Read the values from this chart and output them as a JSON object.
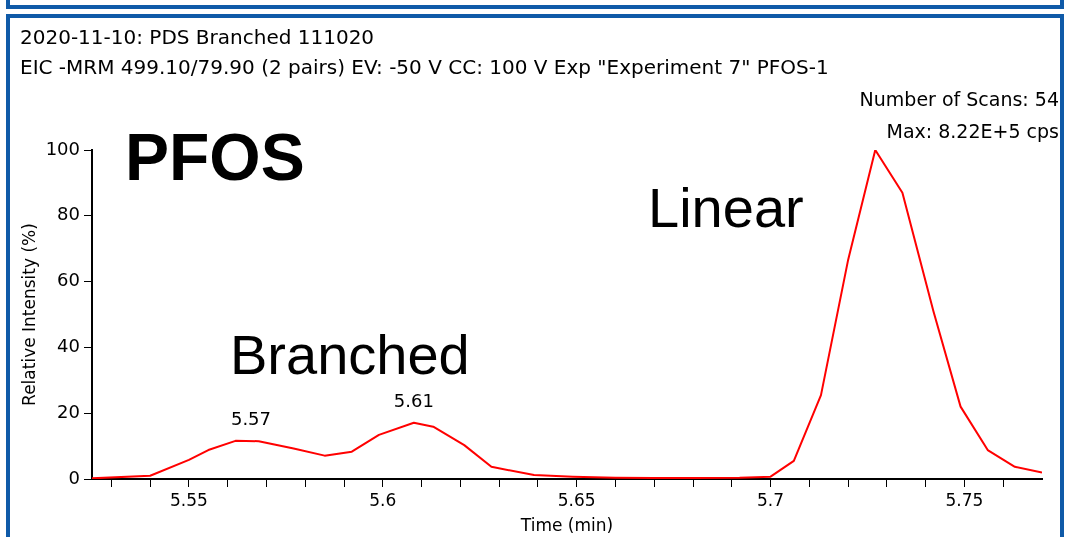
{
  "chart_data": {
    "type": "line",
    "title": "2020-11-10: PDS Branched 111020",
    "subtitle": "EIC -MRM 499.10/79.90 (2 pairs) EV: -50 V CC: 100 V Exp \"Experiment 7\" PFOS-1",
    "xlabel": "Time (min)",
    "ylabel": "Relative Intensity (%)",
    "x": [
      5.525,
      5.54,
      5.55,
      5.555,
      5.562,
      5.568,
      5.577,
      5.585,
      5.592,
      5.599,
      5.608,
      5.613,
      5.621,
      5.628,
      5.639,
      5.649,
      5.66,
      5.67,
      5.68,
      5.692,
      5.7,
      5.706,
      5.713,
      5.72,
      5.727,
      5.734,
      5.742,
      5.749,
      5.756,
      5.763,
      5.77
    ],
    "series": [
      {
        "color": "#ff0000",
        "values": [
          0.2,
          1,
          5.8,
          8.8,
          11.6,
          11.5,
          9.3,
          7.1,
          8.3,
          13.4,
          17.1,
          15.9,
          10.3,
          3.7,
          1.2,
          0.7,
          0.4,
          0.3,
          0.3,
          0.4,
          0.7,
          5.5,
          25.5,
          66.6,
          100,
          87,
          51,
          22,
          8.8,
          3.7,
          2
        ]
      }
    ],
    "xlim": [
      5.525,
      5.77
    ],
    "xticks": [
      {
        "value": 5.53,
        "label": null
      },
      {
        "value": 5.54,
        "label": null
      },
      5.55,
      {
        "value": 5.56,
        "label": null
      },
      {
        "value": 5.57,
        "label": null
      },
      {
        "value": 5.58,
        "label": null
      },
      {
        "value": 5.59,
        "label": null
      },
      5.6,
      {
        "value": 5.61,
        "label": null
      },
      {
        "value": 5.62,
        "label": null
      },
      {
        "value": 5.63,
        "label": null
      },
      {
        "value": 5.64,
        "label": null
      },
      5.65,
      {
        "value": 5.66,
        "label": null
      },
      {
        "value": 5.67,
        "label": null
      },
      {
        "value": 5.68,
        "label": null
      },
      {
        "value": 5.69,
        "label": null
      },
      5.7,
      {
        "value": 5.71,
        "label": null
      },
      {
        "value": 5.72,
        "label": null
      },
      {
        "value": 5.73,
        "label": null
      },
      {
        "value": 5.74,
        "label": null
      },
      5.75,
      {
        "value": 5.76,
        "label": null
      }
    ],
    "ylim": [
      0,
      100
    ],
    "yticks": [
      0,
      20,
      40,
      60,
      80,
      100
    ],
    "annotations": [
      {
        "text": "5.57",
        "x": 5.566,
        "y": 11.6
      },
      {
        "text": "5.61",
        "x": 5.608,
        "y": 17.1
      },
      "Number of Scans: 54",
      "Max: 8.22E+5 cps",
      "PFOS",
      "Branched",
      "Linear"
    ],
    "grid": false,
    "legend": false,
    "marker": "none",
    "line_style": "solid"
  }
}
